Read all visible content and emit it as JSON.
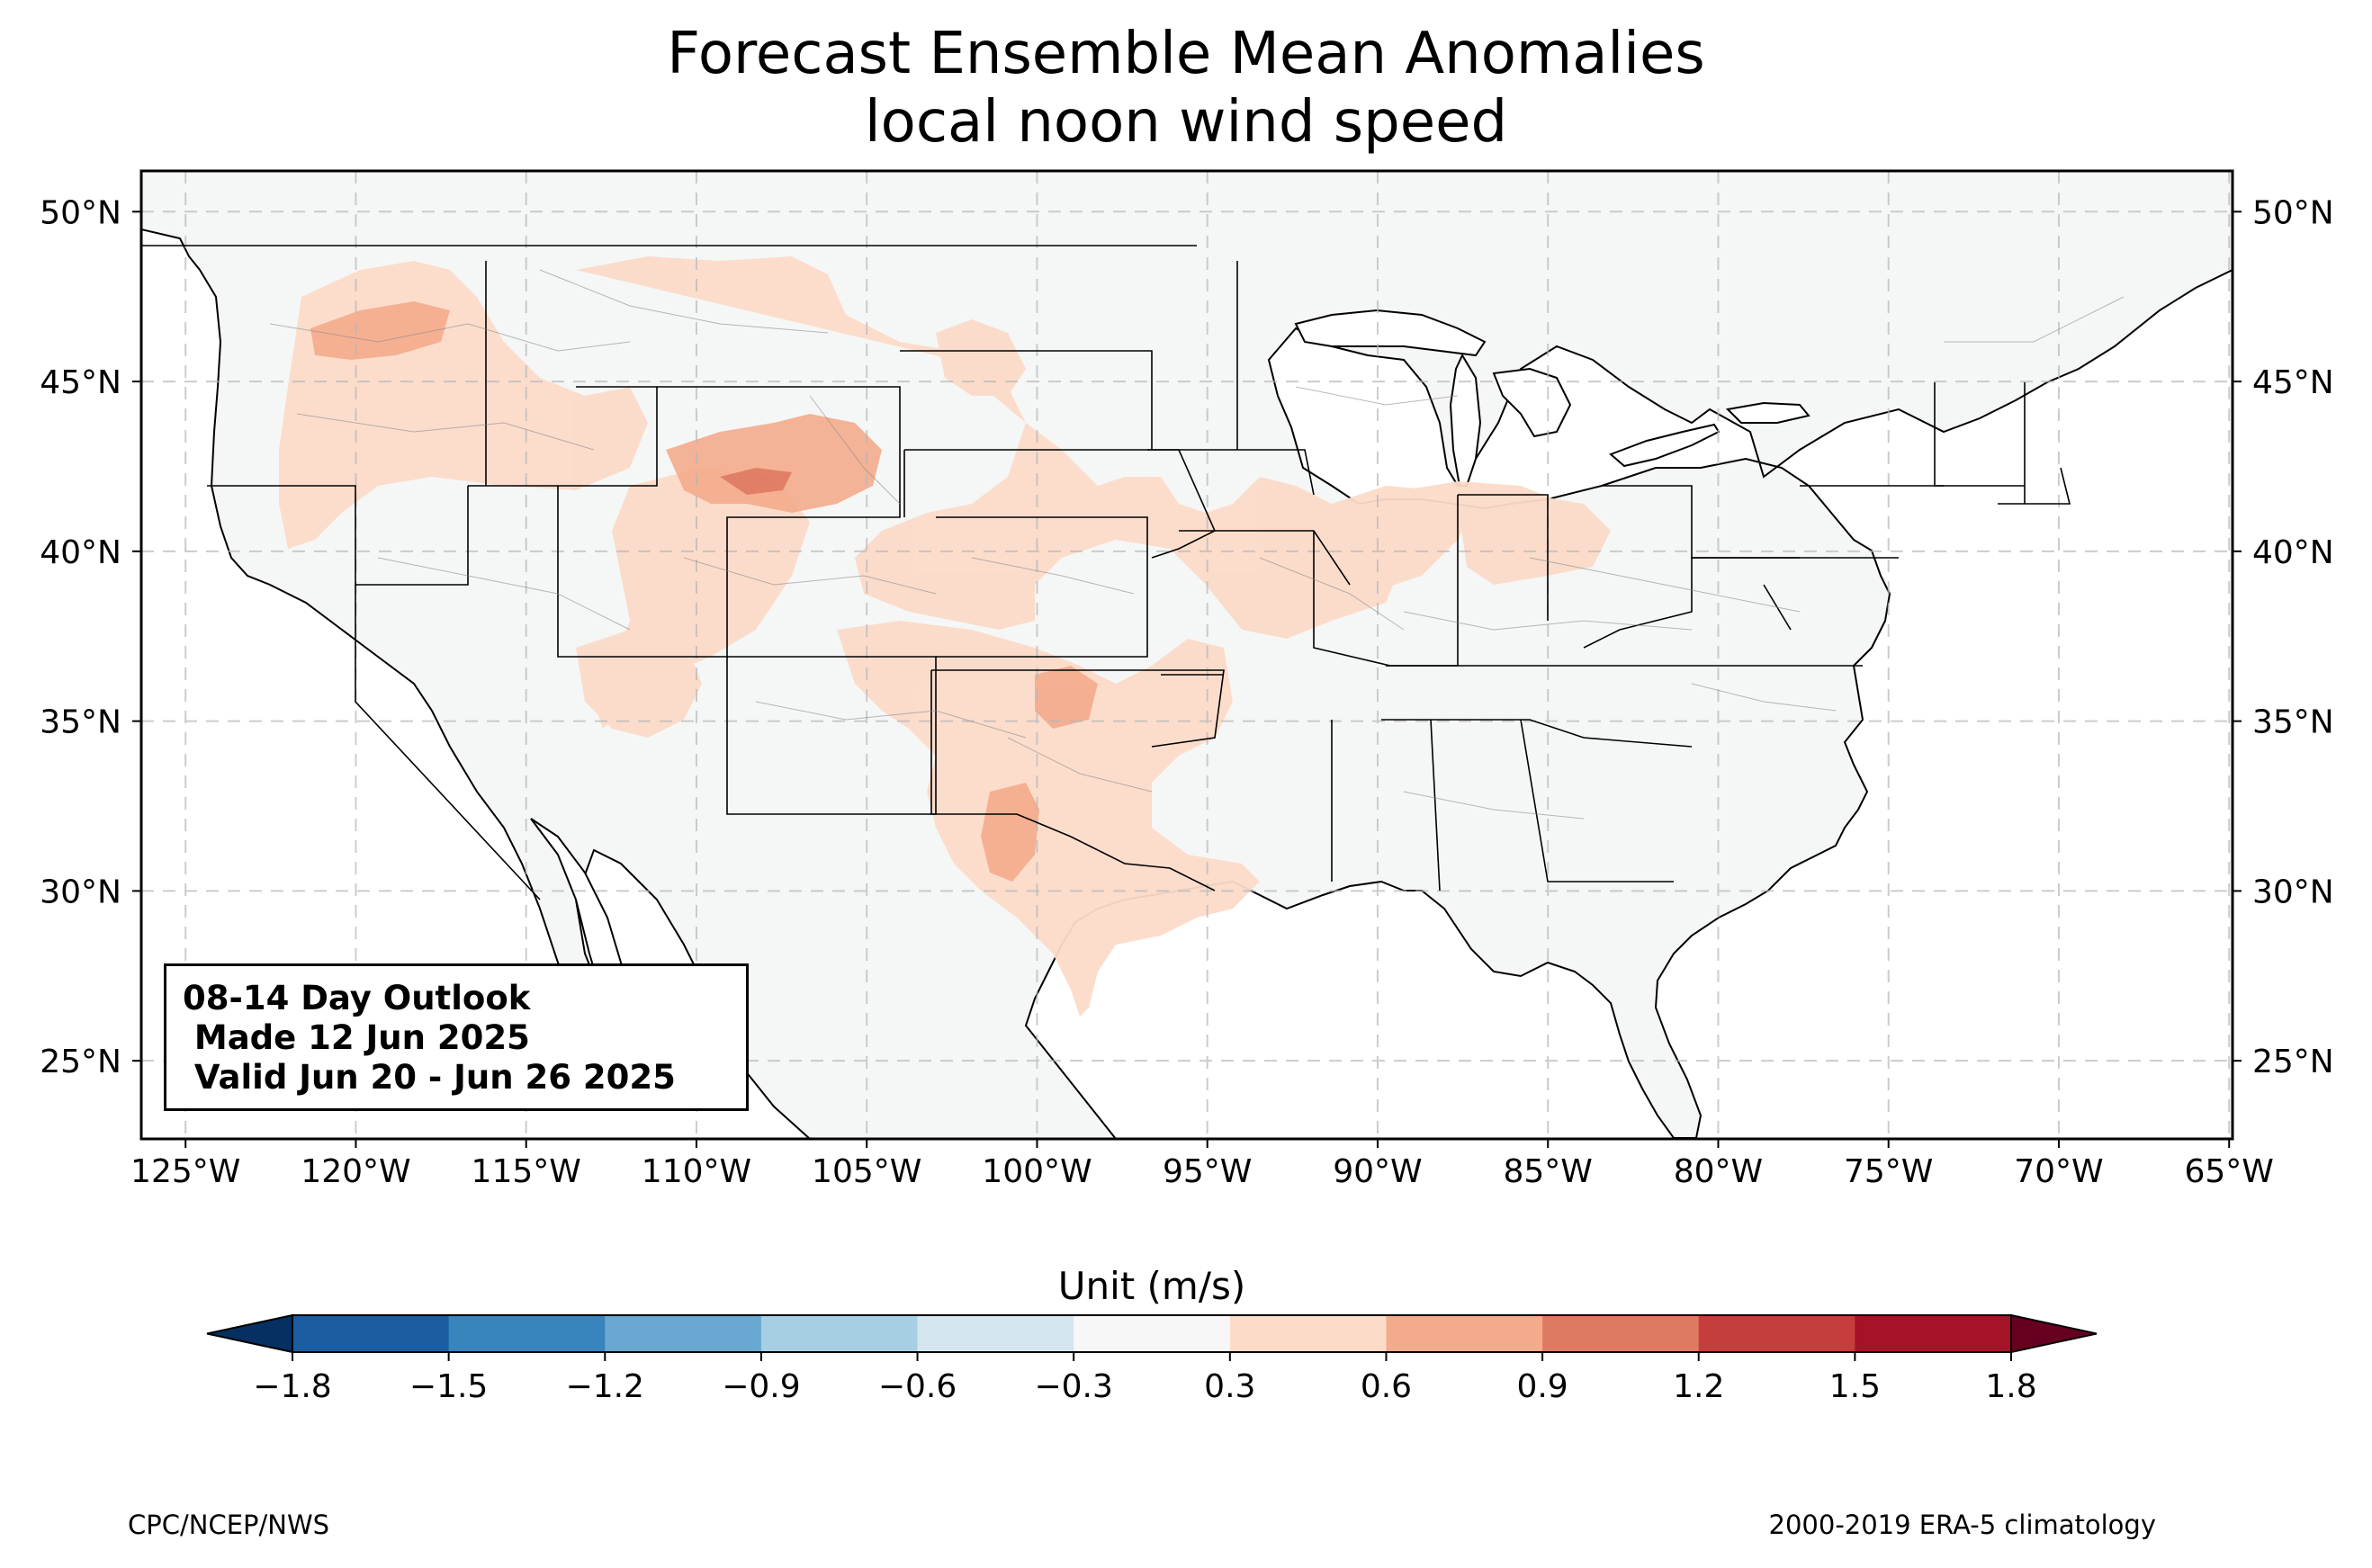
{
  "title": "Forecast Ensemble Mean Anomalies",
  "subtitle": "local noon wind speed",
  "outlook": {
    "line1": "08-14 Day Outlook",
    "line2": " Made 12 Jun 2025",
    "line3": " Valid Jun 20 - Jun 26 2025"
  },
  "map": {
    "lon_range": [
      -126.3,
      -64.9
    ],
    "lat_range": [
      22.7,
      51.2
    ],
    "lon_ticks": [
      "125°W",
      "120°W",
      "115°W",
      "110°W",
      "105°W",
      "100°W",
      "95°W",
      "90°W",
      "85°W",
      "80°W",
      "75°W",
      "70°W",
      "65°W"
    ],
    "lat_ticks": [
      "50°N",
      "45°N",
      "40°N",
      "35°N",
      "30°N",
      "25°N"
    ],
    "grid": true,
    "anomaly_regions": [
      {
        "name": "Northwest interior",
        "level": "0.3–0.6"
      },
      {
        "name": "Idaho/Montana border",
        "level": "0.6–0.9"
      },
      {
        "name": "Wyoming / Colorado / Nebraska",
        "level": "0.6–0.9"
      },
      {
        "name": "Southern Wyoming core",
        "level": "0.9–1.2"
      },
      {
        "name": "Central Plains to Ohio Valley",
        "level": "0.3–0.6"
      },
      {
        "name": "Oklahoma",
        "level": "0.6–0.9"
      },
      {
        "name": "West Texas",
        "level": "0.6–0.9"
      }
    ]
  },
  "colorbar": {
    "title": "Unit (m/s)",
    "tick_labels": [
      "−1.8",
      "−1.5",
      "−1.2",
      "−0.9",
      "−0.6",
      "−0.3",
      "0.3",
      "0.6",
      "0.9",
      "1.2",
      "1.5",
      "1.8"
    ],
    "colors": [
      "#053061",
      "#1b5da2",
      "#3884bd",
      "#69a8d0",
      "#a7cfe4",
      "#d5e5ef",
      "#f7f7f7",
      "#fcdbc9",
      "#f4ab8c",
      "#df7a62",
      "#c53d3d",
      "#a51328",
      "#67001f"
    ]
  },
  "footer": {
    "left": "CPC/NCEP/NWS",
    "right": "2000-2019 ERA-5 climatology"
  },
  "colors": {
    "land": "#f5f7f6",
    "ocean": "#ffffff",
    "anomaly_light": "#fcdbc9",
    "anomaly_mid": "#f4ab8c",
    "anomaly_strong": "#df7a62"
  }
}
